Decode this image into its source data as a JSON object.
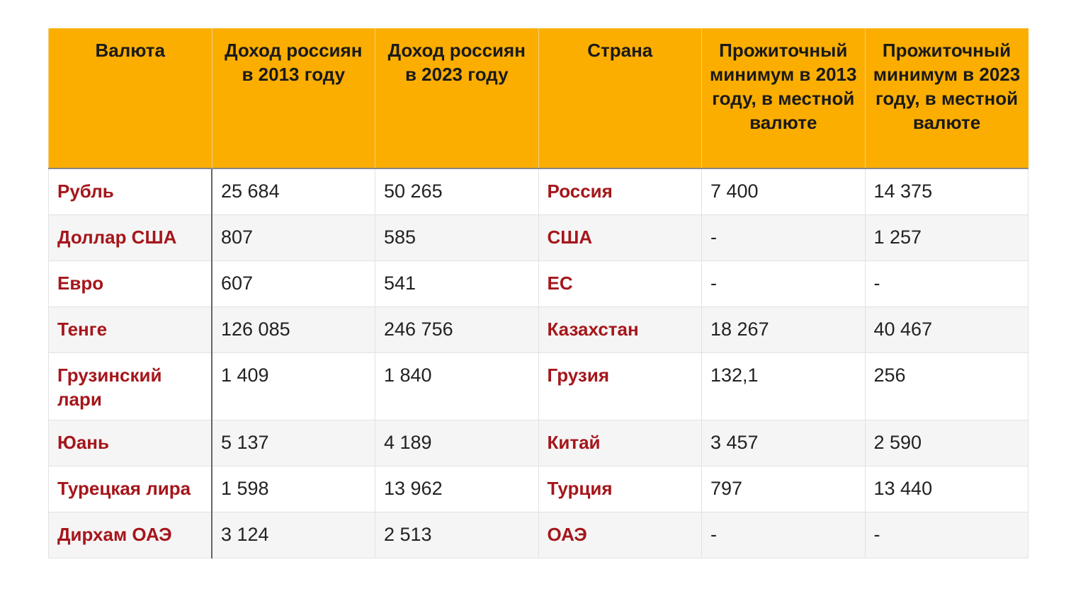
{
  "table": {
    "headers": [
      "Валюта",
      "Доход россиян в 2013 году",
      "Доход россиян в 2023 году",
      "Страна",
      "Прожиточный минимум в 2013 году, в местной валюте",
      "Прожиточный минимум в 2023 году, в местной валюте"
    ],
    "rows": [
      [
        "Рубль",
        "25 684",
        "50 265",
        "Россия",
        "7 400",
        "14 375"
      ],
      [
        "Доллар США",
        "807",
        "585",
        "США",
        "-",
        "1 257"
      ],
      [
        "Евро",
        "607",
        "541",
        "ЕС",
        "-",
        "-"
      ],
      [
        "Тенге",
        "126 085",
        "246 756",
        "Казахстан",
        "18 267",
        "40 467"
      ],
      [
        "Грузинский лари",
        "1 409",
        "1 840",
        "Грузия",
        "132,1",
        "256"
      ],
      [
        "Юань",
        "5 137",
        "4 189",
        "Китай",
        "3 457",
        "2 590"
      ],
      [
        "Турецкая лира",
        "1 598",
        "13 962",
        "Турция",
        "797",
        "13 440"
      ],
      [
        "Дирхам ОАЭ",
        "3 124",
        "2 513",
        "ОАЭ",
        "-",
        "-"
      ]
    ]
  }
}
